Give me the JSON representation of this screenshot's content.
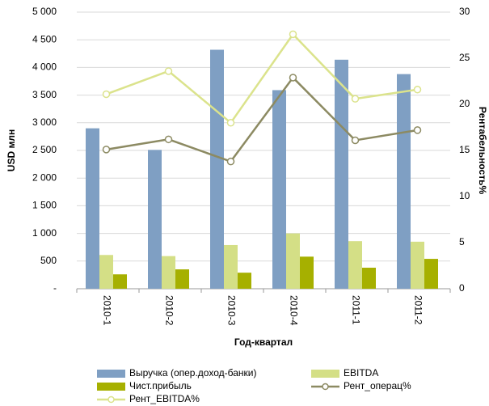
{
  "chart_data": {
    "type": "bar_line",
    "xlabel": "Год-квартал",
    "ylabel": "USD млн",
    "y2label": "Рентабельность%",
    "categories": [
      "2010-1",
      "2010-2",
      "2010-3",
      "2010-4",
      "2011-1",
      "2011-2"
    ],
    "series": [
      {
        "name": "Выручка (опер.доход-банки)",
        "type": "bar",
        "color": "#7f9fc3",
        "values": [
          2900,
          2510,
          4320,
          3590,
          4140,
          3880
        ]
      },
      {
        "name": "EBITDA",
        "type": "bar",
        "color": "#d4df86",
        "values": [
          610,
          590,
          790,
          1000,
          860,
          850
        ]
      },
      {
        "name": "Чист.прибыль",
        "type": "bar",
        "color": "#a6b000",
        "values": [
          260,
          350,
          290,
          580,
          380,
          540
        ]
      },
      {
        "name": "Рент_операц%",
        "type": "line",
        "axis": "y2",
        "color": "#8c8a62",
        "values": [
          15.1,
          16.2,
          13.8,
          22.9,
          16.1,
          17.2
        ]
      },
      {
        "name": "Рент_EBITDA%",
        "type": "line",
        "axis": "y2",
        "color": "#dbe38c",
        "values": [
          21.1,
          23.6,
          18.0,
          27.6,
          20.6,
          21.6
        ]
      }
    ],
    "ylim": [
      0,
      5000
    ],
    "yticks": [
      {
        "value": 0,
        "label": "-"
      },
      500,
      {
        "value": 1000,
        "label": "1 000"
      },
      {
        "value": 1500,
        "label": "1 500"
      },
      {
        "value": 2000,
        "label": "2 000"
      },
      {
        "value": 2500,
        "label": "2 500"
      },
      {
        "value": 3000,
        "label": "3 000"
      },
      {
        "value": 3500,
        "label": "3 500"
      },
      {
        "value": 4000,
        "label": "4 000"
      },
      {
        "value": 4500,
        "label": "4 500"
      },
      {
        "value": 5000,
        "label": "5 000"
      }
    ],
    "y2lim": [
      0,
      30
    ],
    "y2ticks": [
      0,
      5,
      10,
      15,
      20,
      25,
      30
    ],
    "grid": true
  }
}
